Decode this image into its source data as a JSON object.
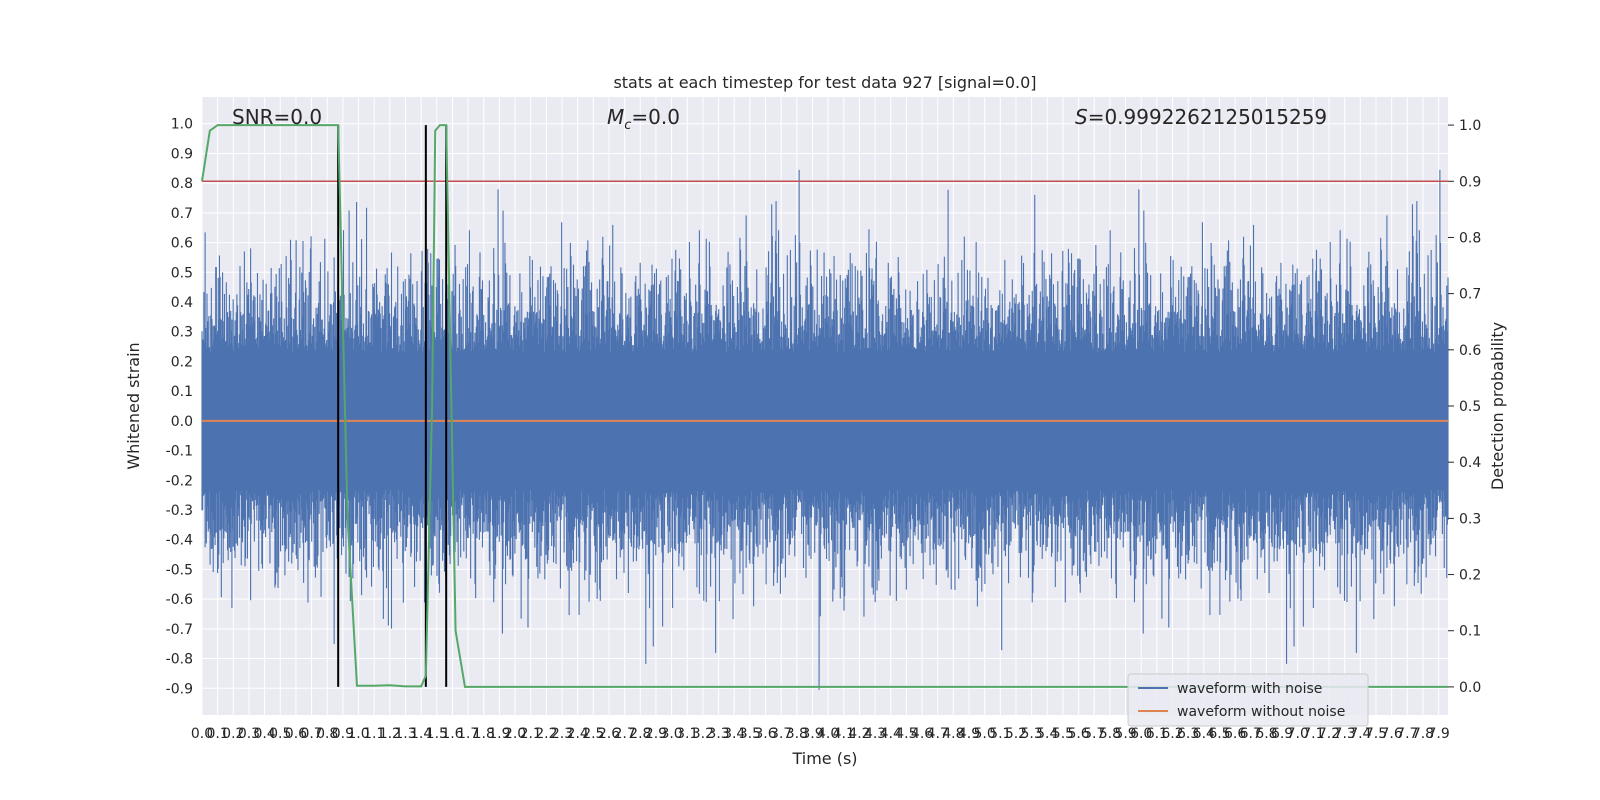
{
  "chart_data": {
    "type": "line",
    "title": "stats at each timestep for test data 927 [signal=0.0]",
    "xlabel": "Time (s)",
    "ylabel": "Whitened strain",
    "y2label": "Detection probability",
    "xlim": [
      0.0,
      7.96
    ],
    "ylim": [
      -0.99,
      1.09
    ],
    "y2lim": [
      -0.05,
      1.05
    ],
    "grid": true,
    "x_ticks": [
      "0.0",
      "0.1",
      "0.2",
      "0.3",
      "0.4",
      "0.5",
      "0.6",
      "0.7",
      "0.8",
      "0.9",
      "1.0",
      "1.1",
      "1.2",
      "1.3",
      "1.4",
      "1.5",
      "1.6",
      "1.7",
      "1.8",
      "1.9",
      "2.0",
      "2.1",
      "2.2",
      "2.3",
      "2.4",
      "2.5",
      "2.6",
      "2.7",
      "2.8",
      "2.9",
      "3.0",
      "3.1",
      "3.2",
      "3.3",
      "3.4",
      "3.5",
      "3.6",
      "3.7",
      "3.8",
      "3.9",
      "4.0",
      "4.1",
      "4.2",
      "4.3",
      "4.4",
      "4.5",
      "4.6",
      "4.7",
      "4.8",
      "4.9",
      "5.0",
      "5.1",
      "5.2",
      "5.3",
      "5.4",
      "5.5",
      "5.6",
      "5.7",
      "5.8",
      "5.9",
      "6.0",
      "6.1",
      "6.2",
      "6.3",
      "6.4",
      "6.5",
      "6.6",
      "6.7",
      "6.8",
      "6.9",
      "7.0",
      "7.1",
      "7.2",
      "7.3",
      "7.4",
      "7.5",
      "7.6",
      "7.7",
      "7.8",
      "7.9"
    ],
    "y_ticks": [
      "1.0",
      "0.9",
      "0.8",
      "0.7",
      "0.6",
      "0.5",
      "0.4",
      "0.3",
      "0.2",
      "0.1",
      "0.0",
      "-0.1",
      "-0.2",
      "-0.3",
      "-0.4",
      "-0.5",
      "-0.6",
      "-0.7",
      "-0.8",
      "-0.9"
    ],
    "y2_ticks": [
      "1.0",
      "0.9",
      "0.8",
      "0.7",
      "0.6",
      "0.5",
      "0.4",
      "0.3",
      "0.2",
      "0.1",
      "0.0"
    ],
    "annotations": {
      "snr": "SNR=0.0",
      "mc_symbol": "M",
      "mc_sub": "c",
      "mc_value": "=0.0",
      "s_symbol": "S",
      "s_value": "=0.9992262125015259"
    },
    "series": [
      {
        "name": "waveform with noise",
        "color": "#4c72b0",
        "axis": "left",
        "noise": {
          "typical_abs": 0.42,
          "max_peak": 1.0,
          "min_trough": -0.92
        }
      },
      {
        "name": "waveform without noise",
        "color": "#dd8452",
        "axis": "left",
        "x": [
          0.0,
          7.96
        ],
        "y": [
          0.0,
          0.0
        ]
      },
      {
        "name": "detection probability",
        "color": "#55a868",
        "axis": "right",
        "x": [
          0.0,
          0.05,
          0.1,
          0.2,
          0.4,
          0.6,
          0.8,
          0.87,
          0.93,
          0.99,
          1.1,
          1.2,
          1.3,
          1.4,
          1.43,
          1.47,
          1.49,
          1.52,
          1.56,
          1.62,
          1.68,
          2.0,
          3.0,
          4.0,
          5.0,
          6.0,
          7.0,
          7.96
        ],
        "y": [
          0.9,
          0.99,
          1.0,
          1.0,
          1.0,
          1.0,
          1.0,
          1.0,
          0.3,
          0.002,
          0.002,
          0.003,
          0.001,
          0.001,
          0.02,
          0.5,
          0.99,
          1.0,
          1.0,
          0.1,
          0.0,
          0.0,
          0.0,
          0.0,
          0.0,
          0.0,
          0.0,
          0.0
        ]
      }
    ],
    "threshold": {
      "axis": "right",
      "value": 0.9,
      "color": "#c44e52"
    },
    "vertical_lines": {
      "x": [
        0.87,
        1.43,
        1.56
      ],
      "color": "#000000"
    },
    "legend": {
      "placement": "lower-right",
      "entries": [
        {
          "label": "waveform with noise",
          "color": "#4c72b0"
        },
        {
          "label": "waveform without noise",
          "color": "#dd8452"
        }
      ]
    },
    "colors": {
      "plot_background": "#eaeaf2",
      "grid": "#ffffff"
    }
  }
}
